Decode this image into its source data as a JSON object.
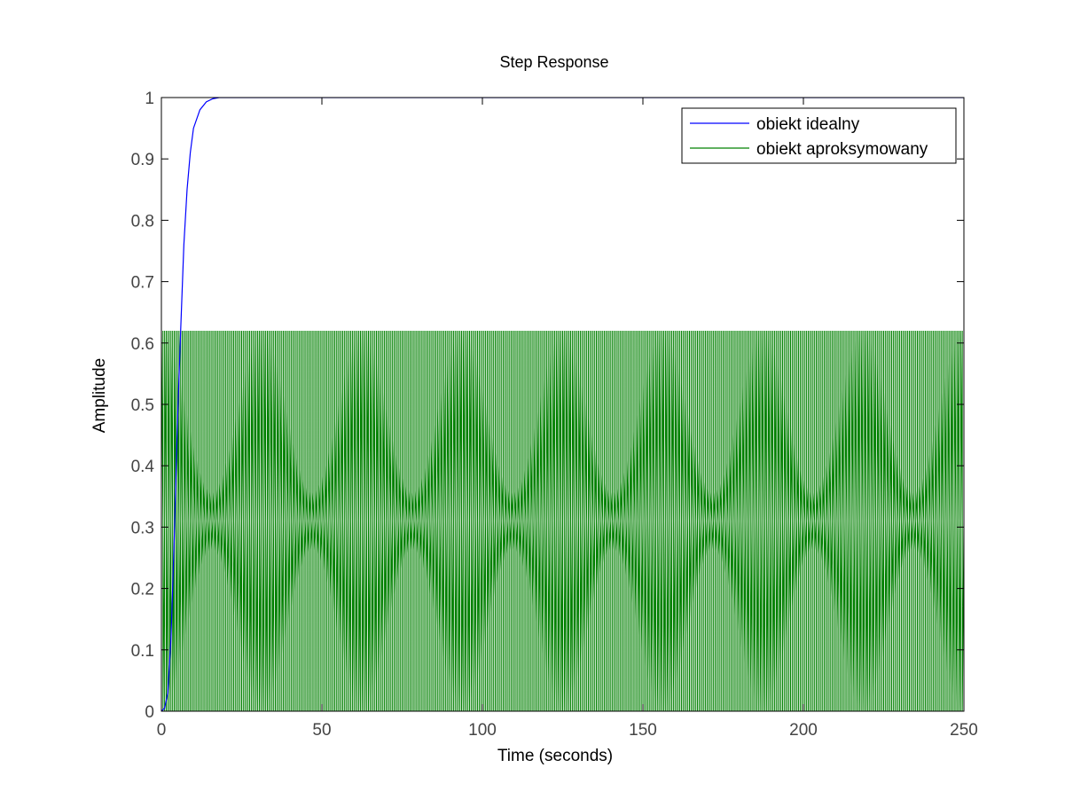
{
  "chart_data": {
    "type": "line",
    "title": "Step Response",
    "xlabel": "Time (seconds)",
    "ylabel": "Amplitude",
    "xlim": [
      0,
      250
    ],
    "ylim": [
      0,
      1
    ],
    "xticks": [
      0,
      50,
      100,
      150,
      200,
      250
    ],
    "yticks": [
      0,
      0.1,
      0.2,
      0.3,
      0.4,
      0.5,
      0.6,
      0.7,
      0.8,
      0.9,
      1
    ],
    "grid": false,
    "legend_position": "top-right",
    "series": [
      {
        "name": "obiekt idealny",
        "color": "#0000ff",
        "x": [
          0,
          1,
          2,
          3,
          4,
          5,
          6,
          7,
          8,
          9,
          10,
          12,
          14,
          16,
          18,
          20,
          250
        ],
        "y": [
          0,
          0.005,
          0.03,
          0.12,
          0.28,
          0.47,
          0.62,
          0.76,
          0.85,
          0.91,
          0.95,
          0.98,
          0.993,
          0.998,
          1.0,
          1.0,
          1.0
        ]
      },
      {
        "name": "obiekt aproksymowany",
        "color": "#008000",
        "oscillation_period": 1.0,
        "oscillation_min": 0,
        "oscillation_max": 0.62,
        "steady_value": 0.31
      }
    ]
  }
}
